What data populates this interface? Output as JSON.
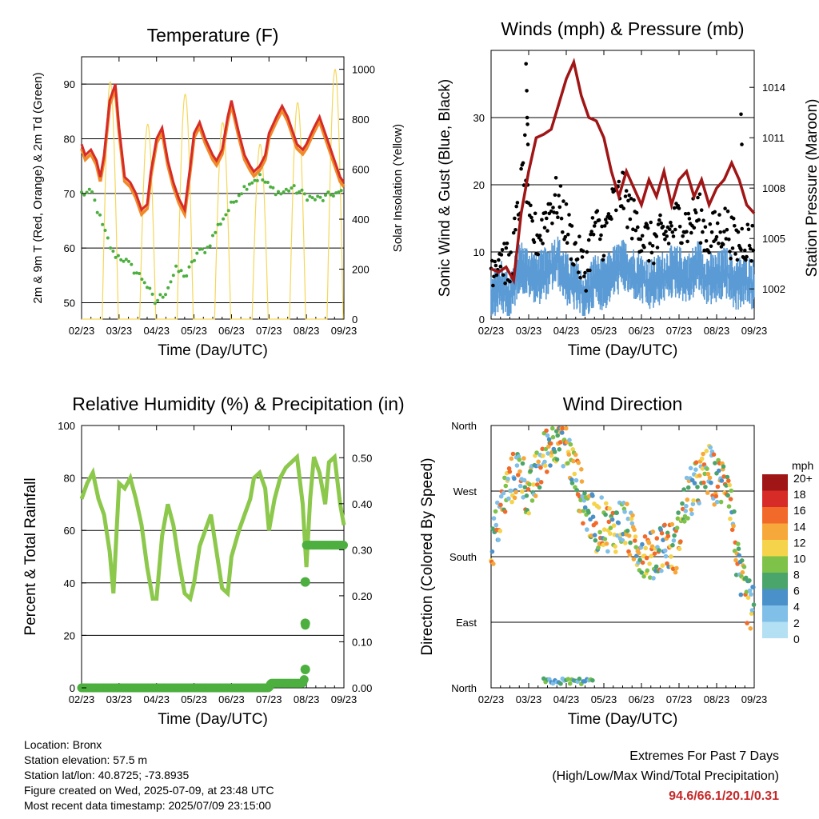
{
  "colors": {
    "temp_2m": "#d62b27",
    "temp_9m": "#f08a2a",
    "dewpoint": "#4caf3f",
    "solar": "#f5d75a",
    "sonic_wind": "#5b9bd5",
    "gust": "#000000",
    "pressure": "#a01515",
    "humidity": "#8cc84b",
    "rain": "#4caf3f",
    "speed_scale": [
      "#b3e0f2",
      "#7fbfe8",
      "#4a90c9",
      "#4aa56a",
      "#7ec24a",
      "#f5d34a",
      "#f7a83a",
      "#f26a2a",
      "#d62b27",
      "#a01515"
    ]
  },
  "footer": {
    "location": "Location: Bronx",
    "elevation": "Station elevation: 57.5 m",
    "latlon": "Station lat/lon: 40.8725; -73.8935",
    "created": "Figure created on Wed, 2025-07-09, at 23:48 UTC",
    "recent": "Most recent data timestamp: 2025/07/09 23:15:00"
  },
  "extremes": {
    "title": "Extremes For Past 7 Days",
    "subtitle": "(High/Low/Max Wind/Total Precipitation)",
    "values": "94.6/66.1/20.1/0.31"
  },
  "chart_data": [
    {
      "type": "line",
      "title": "Temperature (F)",
      "xlabel": "Time (Day/UTC)",
      "ylabel": "2m & 9m T (Red, Orange) & 2m Td (Green)",
      "y2label": "Solar Insolation (Yellow)",
      "ylim": [
        47,
        95
      ],
      "y2lim": [
        0,
        1050
      ],
      "yticks": [
        "50",
        "60",
        "70",
        "80",
        "90"
      ],
      "y2ticks": [
        "0",
        "200",
        "400",
        "600",
        "800",
        "1000"
      ],
      "xticks": [
        "02/23",
        "03/23",
        "04/23",
        "05/23",
        "06/23",
        "07/23",
        "08/23",
        "09/23"
      ],
      "series": [
        {
          "name": "2m T",
          "x": [
            0,
            0.1,
            0.25,
            0.4,
            0.5,
            0.6,
            0.75,
            0.9,
            1.0,
            1.15,
            1.3,
            1.45,
            1.6,
            1.75,
            1.85,
            2.0,
            2.15,
            2.3,
            2.45,
            2.6,
            2.75,
            2.9,
            3.0,
            3.15,
            3.3,
            3.5,
            3.6,
            3.75,
            3.9,
            4.0,
            4.2,
            4.35,
            4.5,
            4.6,
            4.75,
            4.9,
            5.0,
            5.2,
            5.35,
            5.5,
            5.65,
            5.75,
            5.9,
            6.0,
            6.2,
            6.35,
            6.45,
            6.6,
            6.75,
            6.9,
            7.0
          ],
          "values": [
            79,
            77,
            78,
            76,
            73,
            77,
            87,
            90,
            82,
            73,
            72,
            70,
            67,
            68,
            74,
            80,
            82,
            76,
            72,
            69,
            67,
            75,
            81,
            83,
            80,
            77,
            76,
            78,
            84,
            87,
            81,
            77,
            75,
            74,
            75,
            77,
            81,
            84,
            86,
            84,
            81,
            79,
            78,
            79,
            82,
            84,
            82,
            79,
            76,
            73,
            72
          ]
        },
        {
          "name": "Solar",
          "x": [
            0.6,
            0.75,
            0.85,
            0.95,
            1.05,
            1.15,
            1.6,
            1.75,
            1.85,
            1.95,
            2.1,
            2.6,
            2.75,
            2.85,
            2.95,
            3.1,
            3.6,
            3.75,
            3.9,
            4.0,
            4.1,
            4.6,
            4.75,
            4.85,
            4.95,
            5.1,
            5.6,
            5.75,
            5.9,
            6.0,
            6.1,
            6.6,
            6.75,
            6.85,
            6.95
          ],
          "values": [
            0,
            700,
            950,
            850,
            400,
            0,
            0,
            600,
            780,
            500,
            0,
            0,
            700,
            900,
            600,
            0,
            0,
            600,
            880,
            700,
            0,
            0,
            550,
            700,
            350,
            0,
            0,
            700,
            950,
            800,
            0,
            0,
            900,
            1000,
            200
          ]
        }
      ]
    },
    {
      "type": "scatter",
      "title": "Winds (mph) & Pressure (mb)",
      "xlabel": "Time (Day/UTC)",
      "ylabel": "Sonic Wind & Gust (Blue, Black)",
      "y2label": "Station Pressure (Maroon)",
      "ylim": [
        0,
        40
      ],
      "y2lim": [
        1000.2,
        1016.2
      ],
      "yticks": [
        "0",
        "10",
        "20",
        "30"
      ],
      "y2ticks": [
        "1002",
        "1005",
        "1008",
        "1011",
        "1014"
      ],
      "xticks": [
        "02/23",
        "03/23",
        "04/23",
        "05/23",
        "06/23",
        "07/23",
        "08/23",
        "09/23"
      ],
      "series": [
        {
          "name": "Pressure",
          "x": [
            0,
            0.2,
            0.4,
            0.6,
            0.8,
            1.0,
            1.2,
            1.4,
            1.6,
            1.8,
            2.0,
            2.2,
            2.4,
            2.6,
            2.8,
            3.0,
            3.2,
            3.4,
            3.6,
            3.8,
            4.0,
            4.2,
            4.4,
            4.6,
            4.8,
            5.0,
            5.2,
            5.4,
            5.6,
            5.8,
            6.0,
            6.2,
            6.4,
            6.6,
            6.8,
            7.0
          ],
          "values": [
            1003.2,
            1003.0,
            1003.3,
            1002.5,
            1006.5,
            1009.0,
            1011.0,
            1011.2,
            1011.5,
            1013.0,
            1014.5,
            1015.5,
            1013.5,
            1012.2,
            1012.0,
            1011.0,
            1009.0,
            1007.5,
            1009.0,
            1008.0,
            1007.0,
            1008.5,
            1007.5,
            1009.0,
            1007.0,
            1008.5,
            1009.0,
            1007.5,
            1008.5,
            1007.0,
            1008.0,
            1008.5,
            1009.5,
            1008.5,
            1007.0,
            1006.5
          ]
        },
        {
          "name": "Gust",
          "x": [
            0,
            0.25,
            0.5,
            0.75,
            0.9,
            1.0,
            1.25,
            1.5,
            1.75,
            2.0,
            2.25,
            2.5,
            2.75,
            3.0,
            3.25,
            3.5,
            3.75,
            4.0,
            4.25,
            4.5,
            4.75,
            5.0,
            5.25,
            5.5,
            5.75,
            6.0,
            6.25,
            6.5,
            6.75,
            7.0
          ],
          "values": [
            8,
            10,
            7,
            17,
            24,
            14,
            12,
            16,
            18,
            14,
            10,
            7,
            14,
            12,
            17,
            19,
            15,
            13,
            11,
            12,
            13,
            15,
            14,
            16,
            12,
            13,
            14,
            11,
            12,
            11
          ]
        },
        {
          "name": "Sonic Wind",
          "x": [
            0,
            0.25,
            0.5,
            0.75,
            1.0,
            1.25,
            1.5,
            1.75,
            2.0,
            2.25,
            2.5,
            2.75,
            3.0,
            3.25,
            3.5,
            3.75,
            4.0,
            4.25,
            4.5,
            4.75,
            5.0,
            5.25,
            5.5,
            5.75,
            6.0,
            6.25,
            6.5,
            6.75,
            7.0
          ],
          "values": [
            4,
            5,
            3,
            8,
            7,
            6,
            7,
            9,
            6,
            5,
            3,
            6,
            5,
            7,
            8,
            7,
            6,
            5,
            6,
            7,
            7,
            6,
            8,
            6,
            6,
            7,
            5,
            6,
            5
          ]
        }
      ]
    },
    {
      "type": "line",
      "title": "Relative Humidity (%) & Precipitation (in)",
      "xlabel": "Time (Day/UTC)",
      "ylabel": "Percent & Total Rainfall",
      "ylim": [
        0,
        100
      ],
      "y2lim": [
        0,
        0.57
      ],
      "yticks": [
        "0",
        "20",
        "40",
        "60",
        "80",
        "100"
      ],
      "y2ticks": [
        "0.00",
        "0.10",
        "0.20",
        "0.30",
        "0.40",
        "0.50"
      ],
      "xticks": [
        "02/23",
        "03/23",
        "04/23",
        "05/23",
        "06/23",
        "07/23",
        "08/23",
        "09/23"
      ],
      "series": [
        {
          "name": "RH",
          "x": [
            0,
            0.15,
            0.3,
            0.45,
            0.6,
            0.75,
            0.85,
            1.0,
            1.15,
            1.3,
            1.45,
            1.6,
            1.75,
            1.9,
            2.0,
            2.15,
            2.3,
            2.45,
            2.6,
            2.75,
            2.9,
            3.0,
            3.15,
            3.3,
            3.45,
            3.6,
            3.75,
            3.9,
            4.0,
            4.2,
            4.35,
            4.5,
            4.6,
            4.75,
            4.9,
            5.0,
            5.15,
            5.3,
            5.45,
            5.6,
            5.75,
            5.9,
            6.0,
            6.1,
            6.2,
            6.35,
            6.5,
            6.6,
            6.75,
            6.9,
            7.0
          ],
          "values": [
            72,
            78,
            82,
            72,
            66,
            52,
            36,
            78,
            76,
            80,
            72,
            62,
            46,
            34,
            34,
            58,
            70,
            62,
            48,
            36,
            34,
            40,
            54,
            60,
            66,
            52,
            38,
            36,
            50,
            60,
            66,
            72,
            80,
            82,
            76,
            60,
            72,
            80,
            84,
            86,
            88,
            70,
            46,
            72,
            88,
            82,
            70,
            86,
            88,
            70,
            62
          ]
        },
        {
          "name": "Rain",
          "x": [
            0,
            5.0,
            5.05,
            5.9,
            5.95,
            6.0,
            7.0
          ],
          "values": [
            0,
            0,
            0.01,
            0.01,
            0.02,
            0.31,
            0.31
          ]
        }
      ]
    },
    {
      "type": "scatter",
      "title": "Wind Direction",
      "xlabel": "Time (Day/UTC)",
      "ylabel": "Direction (Colored By Speed)",
      "yticks": [
        "North",
        "East",
        "South",
        "West",
        "North"
      ],
      "xticks": [
        "02/23",
        "03/23",
        "04/23",
        "05/23",
        "06/23",
        "07/23",
        "08/23",
        "09/23"
      ],
      "legend_title": "mph",
      "legend_labels": [
        "0",
        "2",
        "4",
        "6",
        "8",
        "10",
        "12",
        "14",
        "16",
        "18",
        "20+"
      ],
      "series": [
        {
          "name": "Direction",
          "x": [
            0.05,
            0.2,
            0.4,
            0.6,
            0.8,
            1.0,
            1.2,
            1.5,
            1.8,
            2.0,
            2.2,
            2.5,
            2.8,
            3.0,
            3.2,
            3.5,
            3.8,
            4.0,
            4.3,
            4.6,
            4.9,
            5.2,
            5.5,
            5.8,
            6.0,
            6.3,
            6.6,
            6.9
          ],
          "values": [
            200,
            230,
            270,
            290,
            300,
            260,
            290,
            330,
            350,
            330,
            300,
            250,
            220,
            230,
            215,
            230,
            200,
            190,
            180,
            200,
            190,
            260,
            280,
            300,
            280,
            290,
            150,
            110
          ]
        }
      ]
    }
  ]
}
